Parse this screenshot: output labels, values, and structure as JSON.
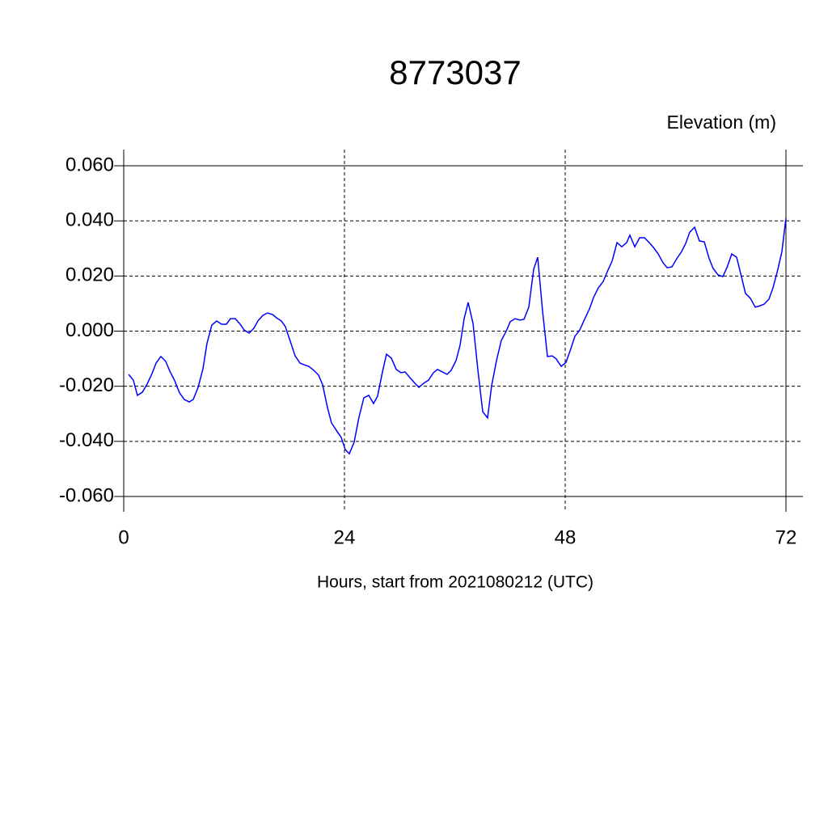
{
  "chart_data": {
    "type": "line",
    "title": "8773037",
    "y_label": "Elevation (m)",
    "x_label": "Hours, start from 2021080212 (UTC)",
    "xlim": [
      0,
      72
    ],
    "ylim": [
      -0.06,
      0.06
    ],
    "xticks": [
      0,
      24,
      48,
      72
    ],
    "yticks": [
      {
        "value": 0.06,
        "label": "0.060"
      },
      {
        "value": 0.04,
        "label": "0.040"
      },
      {
        "value": 0.02,
        "label": "0.020"
      },
      {
        "value": 0,
        "label": "0.000"
      },
      {
        "value": -0.02,
        "label": "-0.020"
      },
      {
        "value": -0.04,
        "label": "-0.040"
      },
      {
        "value": -0.06,
        "label": "-0.060"
      }
    ],
    "grid": true,
    "series": [
      {
        "color": "#0000ff",
        "x": [
          0.53,
          1.05,
          1.49,
          2.02,
          2.55,
          3.08,
          3.52,
          4.04,
          4.57,
          5.01,
          5.54,
          6.07,
          6.59,
          7.12,
          7.56,
          8.09,
          8.62,
          9.05,
          9.58,
          10.11,
          10.64,
          11.16,
          11.6,
          12.13,
          12.66,
          13.1,
          13.63,
          14.15,
          14.59,
          15.12,
          15.65,
          16.18,
          16.62,
          17.14,
          17.58,
          18.11,
          18.64,
          19.16,
          19.6,
          20.13,
          20.66,
          21.19,
          21.63,
          22.15,
          22.59,
          23.12,
          23.65,
          24.09,
          24.53,
          25.05,
          25.58,
          26.11,
          26.64,
          27.16,
          27.6,
          28.13,
          28.57,
          29.1,
          29.63,
          30.15,
          30.59,
          31.12,
          31.65,
          32.09,
          32.62,
          33.14,
          33.67,
          34.11,
          34.64,
          35.16,
          35.6,
          36.13,
          36.57,
          37.01,
          37.45,
          37.98,
          38.51,
          39.03,
          39.56,
          40.0,
          40.53,
          41.05,
          41.58,
          42.02,
          42.55,
          43.08,
          43.52,
          44.04,
          44.57,
          45.01,
          45.54,
          46.07,
          46.59,
          47.03,
          47.56,
          48.09,
          48.62,
          49.05,
          49.58,
          50.11,
          50.64,
          51.08,
          51.6,
          52.13,
          52.66,
          53.1,
          53.63,
          54.15,
          54.68,
          55.03,
          55.56,
          56.09,
          56.62,
          57.14,
          57.58,
          58.11,
          58.64,
          59.08,
          59.6,
          60.13,
          60.66,
          61.1,
          61.54,
          62.07,
          62.59,
          63.12,
          63.65,
          64.09,
          64.62,
          65.14,
          65.58,
          66.11,
          66.64,
          67.16,
          67.6,
          68.13,
          68.66,
          69.19,
          69.63,
          70.15,
          70.59,
          71.12,
          71.56,
          72.0
        ],
        "values": [
          -0.0157,
          -0.0178,
          -0.0233,
          -0.0222,
          -0.0192,
          -0.0154,
          -0.0116,
          -0.0092,
          -0.011,
          -0.0145,
          -0.018,
          -0.0224,
          -0.0248,
          -0.0257,
          -0.0248,
          -0.0204,
          -0.0136,
          -0.0045,
          0.0022,
          0.0037,
          0.0025,
          0.0025,
          0.0045,
          0.0045,
          0.0025,
          0.0004,
          -0.0007,
          0.001,
          0.0037,
          0.0057,
          0.0066,
          0.006,
          0.0048,
          0.0037,
          0.0016,
          -0.0037,
          -0.009,
          -0.0116,
          -0.0122,
          -0.0128,
          -0.0142,
          -0.016,
          -0.0195,
          -0.0277,
          -0.0333,
          -0.036,
          -0.0386,
          -0.043,
          -0.0445,
          -0.0403,
          -0.0312,
          -0.0242,
          -0.0233,
          -0.0263,
          -0.0236,
          -0.0148,
          -0.0084,
          -0.0098,
          -0.0139,
          -0.0151,
          -0.0148,
          -0.0169,
          -0.0189,
          -0.0204,
          -0.0189,
          -0.0178,
          -0.0151,
          -0.0139,
          -0.0148,
          -0.0157,
          -0.0142,
          -0.0107,
          -0.0051,
          0.0045,
          0.0104,
          0.0028,
          -0.0142,
          -0.0292,
          -0.0315,
          -0.0198,
          -0.0107,
          -0.0034,
          -0.0001,
          0.0034,
          0.0045,
          0.004,
          0.0043,
          0.0087,
          0.0224,
          0.0268,
          0.0072,
          -0.0092,
          -0.009,
          -0.0101,
          -0.0128,
          -0.0113,
          -0.0063,
          -0.0019,
          0.0004,
          0.0043,
          0.0081,
          0.0122,
          0.0157,
          0.018,
          0.0222,
          0.0254,
          0.0321,
          0.0306,
          0.0321,
          0.0348,
          0.0306,
          0.0339,
          0.0339,
          0.0321,
          0.0304,
          0.028,
          0.0248,
          0.023,
          0.0233,
          0.0263,
          0.0289,
          0.0318,
          0.0359,
          0.0377,
          0.0327,
          0.0324,
          0.0263,
          0.0227,
          0.0204,
          0.0198,
          0.023,
          0.028,
          0.0268,
          0.0198,
          0.0137,
          0.0119,
          0.0087,
          0.0092,
          0.0098,
          0.0116,
          0.0157,
          0.0224,
          0.0289,
          0.041
        ]
      }
    ]
  }
}
